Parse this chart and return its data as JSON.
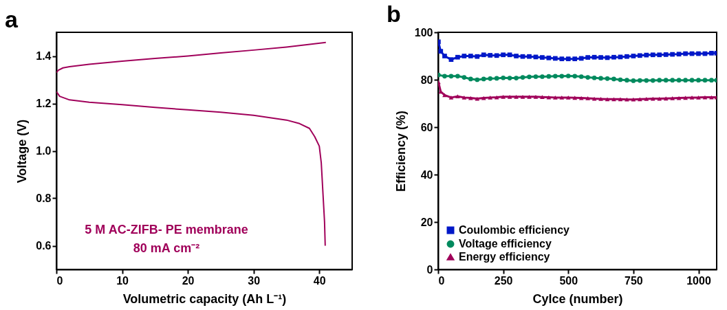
{
  "chart_data": [
    {
      "type": "line",
      "title": "a",
      "xlabel": "Volumetric capacity (Ah L⁻¹)",
      "ylabel": "Voltage (V)",
      "xlim": [
        0,
        45
      ],
      "xticks": [
        0,
        10,
        20,
        30,
        40
      ],
      "ylim": [
        0.5,
        1.5
      ],
      "yticks": [
        0.6,
        0.8,
        {
          "value": 1,
          "label": "1.0"
        },
        1.2,
        1.4
      ],
      "grid": false,
      "legend": false,
      "marker": "none",
      "annotations": [
        "5 M AC-ZIFB- PE membrane",
        "80 mA cm⁻²"
      ],
      "series": [
        {
          "color": "#a0005a",
          "x": [
            0,
            0.3,
            1,
            2,
            5,
            10,
            15,
            20,
            25,
            30,
            35,
            41
          ],
          "values": [
            1.33,
            1.34,
            1.35,
            1.355,
            1.365,
            1.378,
            1.39,
            1.4,
            1.413,
            1.425,
            1.438,
            1.457
          ]
        },
        {
          "color": "#a0005a",
          "x": [
            0,
            0.5,
            2,
            5,
            10,
            15,
            20,
            25,
            30,
            35,
            37,
            38.5,
            39.3,
            40,
            40.3,
            40.6,
            40.8,
            40.9
          ],
          "values": [
            1.25,
            1.23,
            1.215,
            1.205,
            1.195,
            1.183,
            1.173,
            1.163,
            1.15,
            1.13,
            1.115,
            1.095,
            1.06,
            1.02,
            0.95,
            0.8,
            0.7,
            0.6
          ]
        }
      ]
    },
    {
      "type": "line",
      "title": "b",
      "xlabel": "Cylce (number)",
      "ylabel": "Efficiency (%)",
      "xlim": [
        0,
        1070
      ],
      "xticks": [
        0,
        250,
        500,
        750,
        1000
      ],
      "ylim": [
        0,
        100
      ],
      "yticks": [
        0,
        20,
        40,
        60,
        80,
        100
      ],
      "grid": false,
      "legend": "bottom left",
      "series": [
        {
          "name": "Coulombic efficiency",
          "color": "#0018c8",
          "marker": "square",
          "x": [
            1,
            10,
            25,
            50,
            75,
            100,
            125,
            150,
            175,
            200,
            225,
            250,
            275,
            300,
            325,
            350,
            375,
            400,
            425,
            450,
            475,
            500,
            525,
            550,
            575,
            600,
            625,
            650,
            675,
            700,
            725,
            750,
            775,
            800,
            825,
            850,
            875,
            900,
            925,
            950,
            975,
            1000,
            1025,
            1050,
            1070
          ],
          "values": [
            96,
            92,
            90,
            88.5,
            89.5,
            90,
            90,
            89.8,
            90.5,
            90.3,
            90.2,
            90.5,
            90.5,
            90,
            89.8,
            89.8,
            89.6,
            89.4,
            89.2,
            89,
            88.8,
            88.8,
            88.8,
            89,
            89.4,
            89.5,
            89.4,
            89.3,
            89.5,
            89.6,
            89.8,
            90,
            90.2,
            90.4,
            90.5,
            90.5,
            90.6,
            90.7,
            90.8,
            91,
            91,
            91,
            91,
            91.2,
            91.2
          ]
        },
        {
          "name": "Voltage efficiency",
          "color": "#008a5e",
          "marker": "circle",
          "x": [
            1,
            25,
            50,
            75,
            100,
            125,
            150,
            175,
            200,
            225,
            250,
            275,
            300,
            325,
            350,
            375,
            400,
            425,
            450,
            475,
            500,
            525,
            550,
            575,
            600,
            625,
            650,
            675,
            700,
            725,
            750,
            775,
            800,
            825,
            850,
            875,
            900,
            925,
            950,
            975,
            1000,
            1025,
            1050,
            1070
          ],
          "values": [
            82,
            81.5,
            81.5,
            81.5,
            81,
            80.3,
            80,
            80.3,
            80.5,
            80.6,
            80.8,
            80.7,
            80.7,
            81,
            81.2,
            81.3,
            81.3,
            81.4,
            81.5,
            81.5,
            81.6,
            81.5,
            81.3,
            81,
            80.8,
            80.6,
            80.5,
            80.3,
            80,
            79.8,
            79.6,
            79.7,
            79.7,
            79.7,
            79.8,
            79.8,
            79.8,
            79.8,
            79.8,
            79.8,
            79.8,
            79.8,
            79.8,
            79.8
          ]
        },
        {
          "name": "Energy efficiency",
          "color": "#a0005a",
          "marker": "triangle",
          "x": [
            1,
            10,
            25,
            50,
            75,
            100,
            125,
            150,
            175,
            200,
            225,
            250,
            275,
            300,
            325,
            350,
            375,
            400,
            425,
            450,
            475,
            500,
            525,
            550,
            575,
            600,
            625,
            650,
            675,
            700,
            725,
            750,
            775,
            800,
            825,
            850,
            875,
            900,
            925,
            950,
            975,
            1000,
            1025,
            1050,
            1070
          ],
          "values": [
            79,
            75,
            73.5,
            72.5,
            73,
            72.5,
            72.3,
            72,
            72.3,
            72.5,
            72.6,
            72.8,
            72.8,
            72.8,
            72.8,
            72.8,
            72.8,
            72.7,
            72.6,
            72.5,
            72.5,
            72.5,
            72.4,
            72.3,
            72.2,
            72,
            71.9,
            71.8,
            71.8,
            71.8,
            71.7,
            71.7,
            71.8,
            71.9,
            72,
            72,
            72.1,
            72.2,
            72.3,
            72.4,
            72.5,
            72.5,
            72.6,
            72.6,
            72.6
          ]
        }
      ]
    }
  ]
}
